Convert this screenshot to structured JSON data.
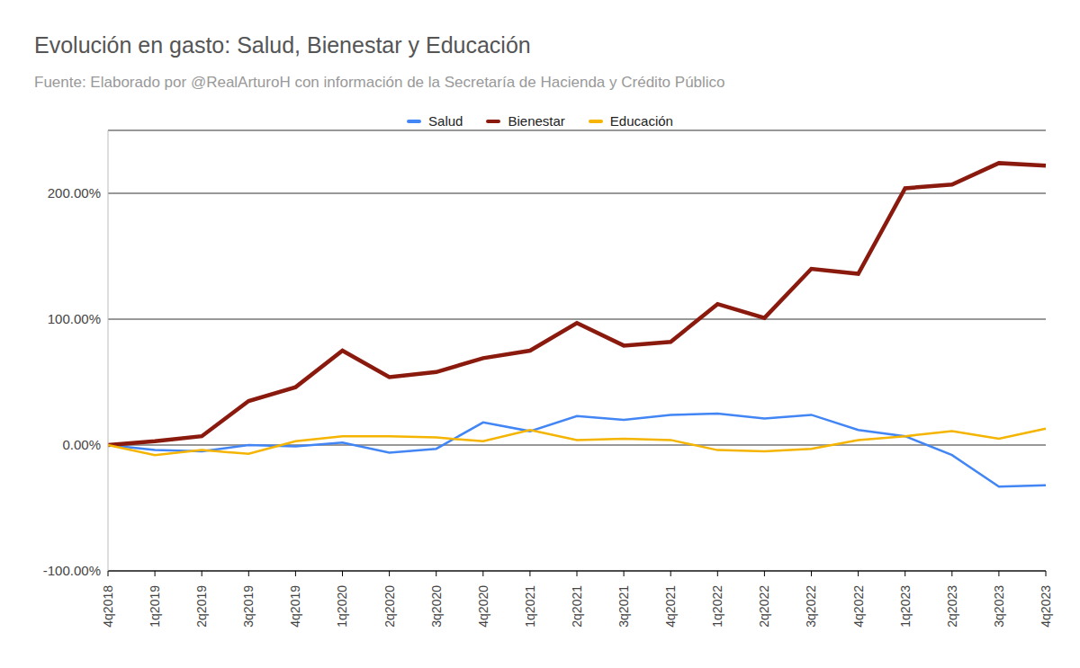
{
  "chart_data": {
    "type": "line",
    "title": "Evolución en gasto: Salud, Bienestar y Educación",
    "subtitle": "Fuente: Elaborado por @RealArturoH con información de la Secretaría de Hacienda y Crédito Público",
    "categories": [
      "4q2018",
      "1q2019",
      "2q2019",
      "3q2019",
      "4q2019",
      "1q2020",
      "2q2020",
      "3q2020",
      "4q2020",
      "1q2021",
      "2q2021",
      "3q2021",
      "4q2021",
      "1q2022",
      "2q2022",
      "3q2022",
      "4q2022",
      "1q2023",
      "2q2023",
      "3q2023",
      "4q2023"
    ],
    "series": [
      {
        "name": "Salud",
        "color": "#4285f4",
        "values": [
          0,
          -4,
          -5,
          0,
          -1,
          2,
          -6,
          -3,
          18,
          11,
          23,
          20,
          24,
          25,
          21,
          24,
          12,
          7,
          -8,
          -33,
          -32
        ]
      },
      {
        "name": "Bienestar",
        "color": "#8b1a0e",
        "values": [
          0,
          3,
          7,
          35,
          46,
          75,
          54,
          58,
          69,
          75,
          97,
          79,
          82,
          112,
          101,
          140,
          136,
          204,
          207,
          224,
          222
        ]
      },
      {
        "name": "Educación",
        "color": "#f4b400",
        "values": [
          0,
          -8,
          -4,
          -7,
          3,
          7,
          7,
          6,
          3,
          12,
          4,
          5,
          4,
          -4,
          -5,
          -3,
          4,
          7,
          11,
          5,
          13
        ]
      }
    ],
    "ylim": [
      -100,
      250
    ],
    "yticks": [
      {
        "value": -100,
        "label": "-100.00%"
      },
      {
        "value": 0,
        "label": "0.00%"
      },
      {
        "value": 100,
        "label": "100.00%"
      },
      {
        "value": 200,
        "label": "200.00%"
      }
    ],
    "grid": true,
    "legend": "top"
  }
}
